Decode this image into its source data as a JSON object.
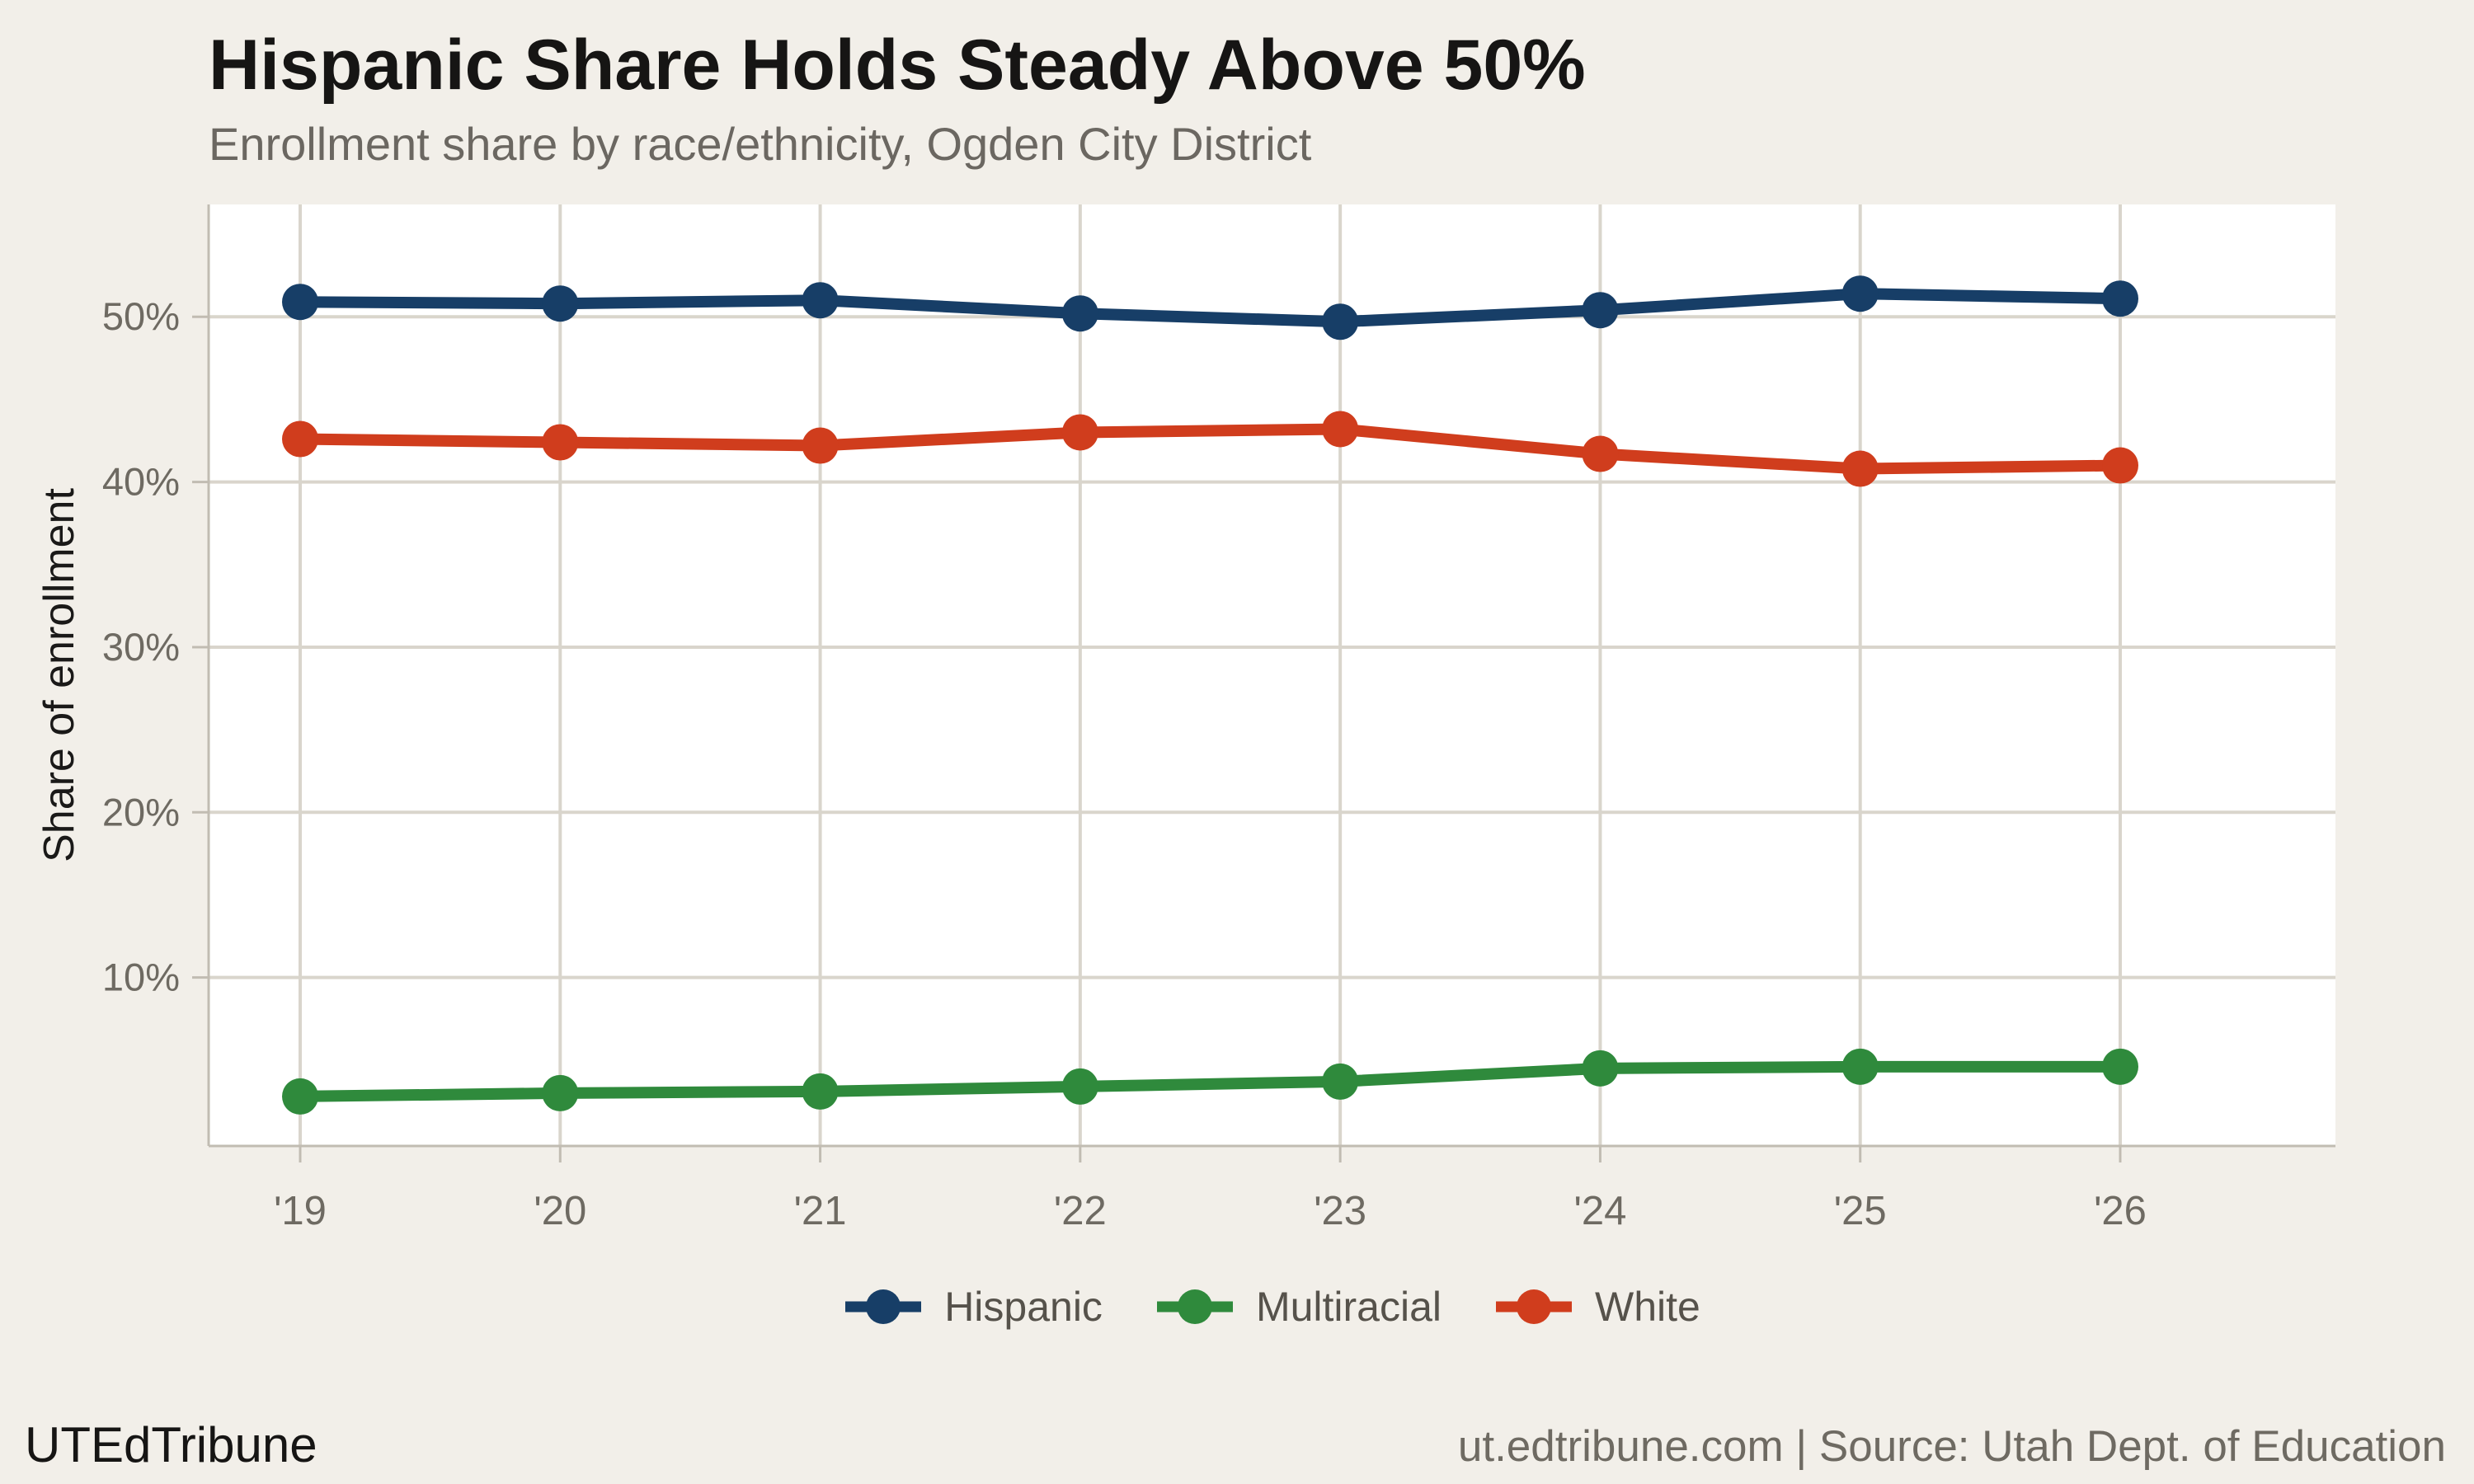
{
  "title": "Hispanic Share Holds Steady Above 50%",
  "subtitle": "Enrollment share by race/ethnicity, Ogden City District",
  "footer": {
    "brand": "UTEdTribune",
    "attribution": "ut.edtribune.com | Source: Utah Dept. of Education"
  },
  "colors": {
    "background": "#f2efe9",
    "panel": "#ffffff",
    "gridline": "#d9d5cc",
    "axis_line": "#c1bcb2",
    "title_text": "#161514",
    "subtitle_text": "#6b6761",
    "tick_text": "#6e6a62",
    "legend_text": "#56524b",
    "hispanic_blue": "#173e67",
    "multiracial_green": "#2f8a3c",
    "white_orange": "#d03d1d"
  },
  "chart_data": {
    "type": "line",
    "x": [
      "'19",
      "'20",
      "'21",
      "'22",
      "'23",
      "'24",
      "'25",
      "'26"
    ],
    "xlabel": "",
    "ylabel": "Share of enrollment",
    "y_ticks": [
      "10%",
      "20%",
      "30%",
      "40%",
      "50%"
    ],
    "y_tick_values": [
      10,
      20,
      30,
      40,
      50
    ],
    "ylim": [
      -0.2,
      56.8
    ],
    "grid": true,
    "legend_position": "bottom",
    "series": [
      {
        "name": "Hispanic",
        "color": "#173e67",
        "values": [
          50.9,
          50.8,
          51.0,
          50.2,
          49.7,
          50.4,
          51.4,
          51.1
        ]
      },
      {
        "name": "Multiracial",
        "color": "#2f8a3c",
        "values": [
          2.8,
          3.0,
          3.1,
          3.4,
          3.7,
          4.5,
          4.6,
          4.6
        ]
      },
      {
        "name": "White",
        "color": "#d03d1d",
        "values": [
          42.6,
          42.4,
          42.2,
          43.0,
          43.2,
          41.7,
          40.8,
          41.0
        ]
      }
    ]
  }
}
